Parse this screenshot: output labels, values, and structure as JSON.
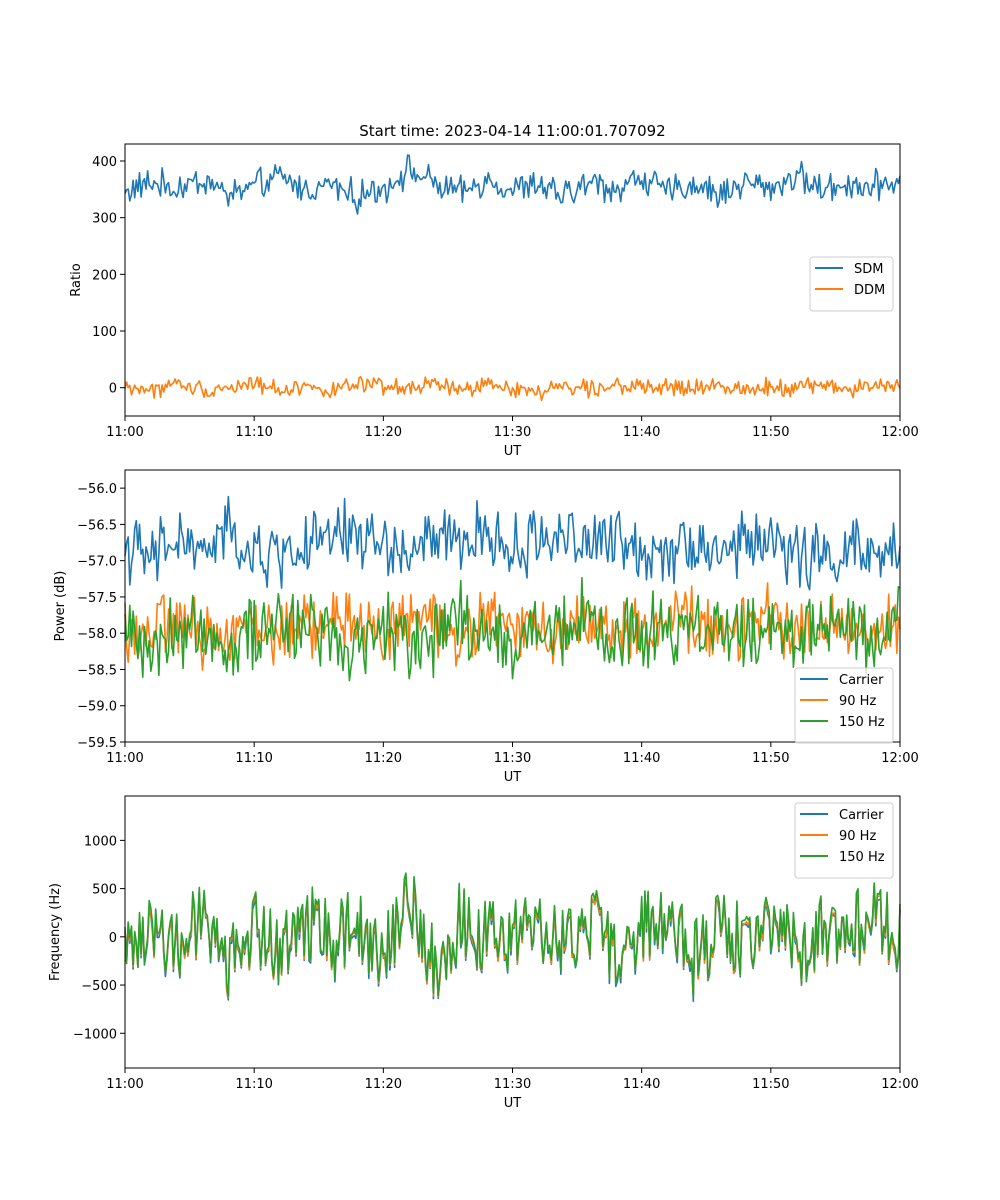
{
  "figure": {
    "title": "Start time: 2023-04-14 11:00:01.707092"
  },
  "chart_data": [
    {
      "type": "line",
      "id": "ratio",
      "xlabel": "UT",
      "ylabel": "Ratio",
      "xlim": [
        "11:00",
        "12:00"
      ],
      "ylim": [
        -50,
        430
      ],
      "xticks": [
        "11:00",
        "11:10",
        "11:20",
        "11:30",
        "11:40",
        "11:50",
        "12:00"
      ],
      "yticks": [
        "0",
        "100",
        "200",
        "300",
        "400"
      ],
      "ytick_values": [
        0,
        100,
        200,
        300,
        400
      ],
      "legend": {
        "placement": "center-right",
        "entries": [
          "SDM",
          "DDM"
        ]
      },
      "x_minutes": [
        0,
        2,
        4,
        6,
        8,
        10,
        12,
        14,
        16,
        18,
        20,
        22,
        24,
        26,
        28,
        30,
        32,
        34,
        36,
        38,
        40,
        42,
        44,
        46,
        48,
        50,
        52,
        54,
        56,
        58,
        60
      ],
      "series": [
        {
          "name": "SDM",
          "color": "#1f77b4",
          "values": [
            345,
            362,
            350,
            368,
            340,
            355,
            372,
            348,
            360,
            335,
            352,
            385,
            358,
            343,
            366,
            349,
            357,
            338,
            362,
            350,
            371,
            345,
            359,
            340,
            364,
            352,
            375,
            348,
            361,
            355,
            370
          ],
          "noise": 32
        },
        {
          "name": "DDM",
          "color": "#ff7f0e",
          "values": [
            2,
            -5,
            6,
            -3,
            0,
            8,
            -4,
            3,
            -6,
            5,
            1,
            -2,
            7,
            -5,
            4,
            0,
            -8,
            3,
            -1,
            6,
            -3,
            2,
            -4,
            5,
            -2,
            3,
            0,
            6,
            -3,
            4,
            1
          ],
          "noise": 18
        }
      ]
    },
    {
      "type": "line",
      "id": "power",
      "xlabel": "UT",
      "ylabel": "Power (dB)",
      "xlim": [
        "11:00",
        "12:00"
      ],
      "ylim": [
        -59.5,
        -55.75
      ],
      "xticks": [
        "11:00",
        "11:10",
        "11:20",
        "11:30",
        "11:40",
        "11:50",
        "12:00"
      ],
      "yticks": [
        "−56.0",
        "−56.5",
        "−57.0",
        "−57.5",
        "−58.0",
        "−58.5",
        "−59.0",
        "−59.5"
      ],
      "ytick_values": [
        -56.0,
        -56.5,
        -57.0,
        -57.5,
        -58.0,
        -58.5,
        -59.0,
        -59.5
      ],
      "legend": {
        "placement": "lower-right",
        "entries": [
          "Carrier",
          "90 Hz",
          "150 Hz"
        ]
      },
      "x_minutes": [
        0,
        2,
        4,
        6,
        8,
        10,
        12,
        14,
        16,
        18,
        20,
        22,
        24,
        26,
        28,
        30,
        32,
        34,
        36,
        38,
        40,
        42,
        44,
        46,
        48,
        50,
        52,
        54,
        56,
        58,
        60
      ],
      "series": [
        {
          "name": "Carrier",
          "color": "#1f77b4",
          "values": [
            -56.8,
            -57.0,
            -56.7,
            -56.9,
            -56.6,
            -57.0,
            -56.9,
            -56.8,
            -56.7,
            -56.6,
            -56.8,
            -56.9,
            -56.7,
            -56.8,
            -56.6,
            -56.9,
            -56.7,
            -56.6,
            -56.8,
            -56.7,
            -56.9,
            -56.8,
            -56.7,
            -56.9,
            -56.8,
            -56.7,
            -56.9,
            -57.0,
            -56.8,
            -57.0,
            -56.9
          ],
          "noise": 0.55
        },
        {
          "name": "90 Hz",
          "color": "#ff7f0e",
          "values": [
            -57.9,
            -58.0,
            -57.8,
            -58.1,
            -57.9,
            -57.8,
            -58.0,
            -57.9,
            -57.8,
            -57.9,
            -58.0,
            -57.8,
            -57.9,
            -58.0,
            -57.8,
            -57.9,
            -58.0,
            -57.9,
            -57.8,
            -57.9,
            -58.0,
            -57.9,
            -57.8,
            -58.0,
            -57.9,
            -57.8,
            -57.9,
            -58.0,
            -57.9,
            -58.0,
            -57.9
          ],
          "noise": 0.55
        },
        {
          "name": "150 Hz",
          "color": "#2ca02c",
          "values": [
            -58.0,
            -58.1,
            -58.0,
            -57.9,
            -58.1,
            -57.9,
            -58.0,
            -57.8,
            -58.0,
            -58.1,
            -57.9,
            -58.0,
            -58.1,
            -57.9,
            -58.0,
            -58.2,
            -57.9,
            -58.0,
            -57.8,
            -58.1,
            -58.0,
            -57.9,
            -58.1,
            -58.0,
            -57.9,
            -58.0,
            -58.1,
            -57.9,
            -58.0,
            -58.0,
            -57.8
          ],
          "noise": 0.65
        }
      ]
    },
    {
      "type": "line",
      "id": "frequency",
      "xlabel": "UT",
      "ylabel": "Frequency (Hz)",
      "xlim": [
        "11:00",
        "12:00"
      ],
      "ylim": [
        -1360,
        1460
      ],
      "xticks": [
        "11:00",
        "11:10",
        "11:20",
        "11:30",
        "11:40",
        "11:50",
        "12:00"
      ],
      "yticks": [
        "−1000",
        "−500",
        "0",
        "500",
        "1000"
      ],
      "ytick_values": [
        -1000,
        -500,
        0,
        500,
        1000
      ],
      "legend": {
        "placement": "upper-right",
        "entries": [
          "Carrier",
          "90 Hz",
          "150 Hz"
        ]
      },
      "x_minutes": [
        0,
        2,
        4,
        6,
        8,
        10,
        12,
        14,
        16,
        18,
        20,
        22,
        24,
        26,
        28,
        30,
        32,
        34,
        36,
        38,
        40,
        42,
        44,
        46,
        48,
        50,
        52,
        54,
        56,
        58,
        60
      ],
      "series": [
        {
          "name": "Carrier",
          "color": "#1f77b4",
          "values": [
            0,
            80,
            -150,
            200,
            -350,
            100,
            -200,
            150,
            -100,
            50,
            -250,
            300,
            -400,
            120,
            -80,
            0,
            150,
            -200,
            100,
            -150,
            50,
            200,
            -300,
            80,
            -120,
            150,
            -250,
            100,
            -50,
            200,
            -100
          ],
          "noise": 380
        },
        {
          "name": "90 Hz",
          "color": "#ff7f0e",
          "values": [
            20,
            100,
            -130,
            220,
            -330,
            120,
            -180,
            170,
            -80,
            70,
            -230,
            320,
            -380,
            140,
            -60,
            20,
            170,
            -180,
            120,
            -130,
            70,
            220,
            -280,
            100,
            -100,
            170,
            -230,
            120,
            -30,
            220,
            -80
          ],
          "noise": 380
        },
        {
          "name": "150 Hz",
          "color": "#2ca02c",
          "values": [
            50,
            130,
            -100,
            250,
            -300,
            150,
            -150,
            200,
            -50,
            100,
            -200,
            350,
            -350,
            170,
            -30,
            50,
            200,
            -150,
            150,
            -100,
            100,
            250,
            -250,
            130,
            -70,
            200,
            -200,
            150,
            0,
            250,
            -50
          ],
          "noise": 400
        }
      ]
    }
  ]
}
